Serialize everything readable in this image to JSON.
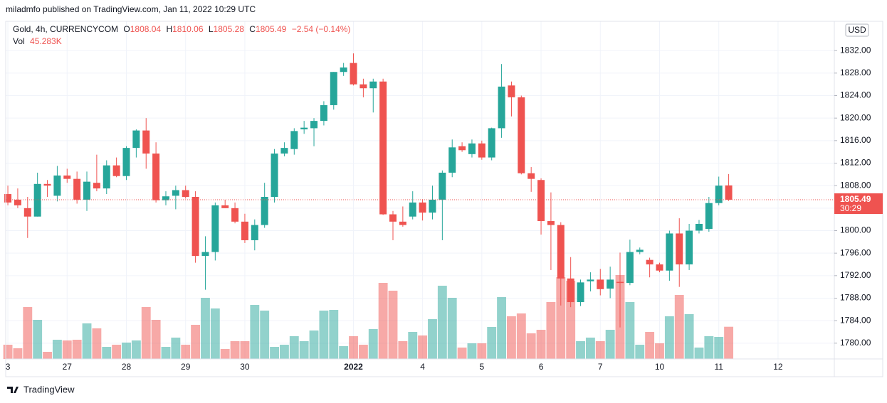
{
  "chart_data": {
    "type": "candlestick",
    "header": "miladmfo published on TradingView.com, Jan 11, 2022 10:29 UTC",
    "footer": "TradingView",
    "currency": "USD",
    "legend": {
      "symbol": "Gold, 4h, CURRENCYCOM",
      "open": "O",
      "high": "H",
      "low": "L",
      "close": "C",
      "change": "−2.54 (−0.14%)",
      "volume": "Vol"
    },
    "volume_last_label": "45.283K",
    "countdown": "30:29",
    "up_color": "#26a69a",
    "down_color": "#ef5350",
    "candles": {
      "open": [
        1806.5,
        1805.5,
        1804,
        1802.5,
        1808.3,
        1806.2,
        1809.8,
        1809.2,
        1805.5,
        1808.5,
        1807.5,
        1811.6,
        1809.7,
        1814.7,
        1817.8,
        1813.7,
        1805.4,
        1806.2,
        1807.2,
        1806,
        1795.5,
        1796.2,
        1804.5,
        1804,
        1801.6,
        1798.3,
        1801,
        1806,
        1813.7,
        1814.5,
        1818,
        1818.2,
        1819.5,
        1822.3,
        1828.2,
        1829.8,
        1826,
        1825.3,
        1826.5,
        1802.9,
        1801.6,
        1802.5,
        1805,
        1803.2,
        1805.5,
        1810.3,
        1815,
        1813.6,
        1815.5,
        1813,
        1818.2,
        1825.8,
        1823.7,
        1810.2,
        1809,
        1801.7,
        1801,
        1791.5,
        1787.3,
        1791,
        1791.3,
        1789.7,
        1790.9,
        1790.7,
        1796.2,
        1794.8,
        1794,
        1792.9,
        1799.5,
        1794,
        1800,
        1800.3,
        1804.9,
        1808.04
      ],
      "high": [
        1808,
        1807.5,
        1806,
        1810.3,
        1809,
        1811.5,
        1811,
        1810.5,
        1810.5,
        1813.5,
        1812.5,
        1813,
        1815,
        1818,
        1820,
        1815.7,
        1807,
        1808,
        1808,
        1807,
        1799,
        1805,
        1805.5,
        1805,
        1803,
        1802,
        1808.5,
        1814.5,
        1815.7,
        1818.2,
        1819.5,
        1820,
        1823,
        1828.2,
        1829.8,
        1831.5,
        1827,
        1827,
        1827,
        1803.5,
        1804.3,
        1807,
        1805.6,
        1808,
        1810.7,
        1816.2,
        1815.7,
        1816.2,
        1816,
        1818.3,
        1829.6,
        1826.5,
        1824,
        1811.3,
        1809.3,
        1806.8,
        1801.5,
        1795.3,
        1791.3,
        1792.6,
        1793.2,
        1793.6,
        1796.1,
        1798.4,
        1797,
        1795.2,
        1794.3,
        1800,
        1802.2,
        1801.2,
        1801.9,
        1806,
        1809.6,
        1810.06
      ],
      "low": [
        1804.5,
        1804,
        1798.7,
        1802.5,
        1806,
        1805.2,
        1808.5,
        1804.8,
        1803.5,
        1807,
        1806.5,
        1809.5,
        1809,
        1813,
        1811,
        1805,
        1804.5,
        1803.8,
        1805.7,
        1794.3,
        1789.5,
        1794.7,
        1804,
        1801.3,
        1797.8,
        1796.5,
        1800.5,
        1805,
        1813.2,
        1813.5,
        1817.2,
        1815,
        1818.7,
        1821.5,
        1827.5,
        1825.8,
        1823.7,
        1821,
        1802.8,
        1798.3,
        1800.7,
        1802,
        1801.8,
        1802,
        1798.3,
        1809.5,
        1814,
        1813,
        1812.6,
        1812.5,
        1816.5,
        1820.3,
        1810,
        1806.9,
        1799.3,
        1793,
        1786.7,
        1786.4,
        1786.6,
        1789.2,
        1788.5,
        1788,
        1782.8,
        1790.3,
        1795.8,
        1791.7,
        1792.6,
        1791.1,
        1790,
        1793,
        1799.5,
        1799.8,
        1804.5,
        1805.28
      ],
      "close": [
        1805,
        1804.5,
        1802.5,
        1808.3,
        1808,
        1809.8,
        1809.2,
        1805.5,
        1808.7,
        1807.5,
        1811.6,
        1809.7,
        1814.7,
        1817.8,
        1813.7,
        1805.4,
        1806.1,
        1807.2,
        1806,
        1795.5,
        1796.2,
        1804.5,
        1804,
        1801.6,
        1798.3,
        1801,
        1806,
        1813.7,
        1814.7,
        1817.7,
        1818.3,
        1819.5,
        1822.3,
        1828.2,
        1829,
        1826,
        1825.3,
        1826.5,
        1802.9,
        1801.6,
        1801,
        1805,
        1803.2,
        1805.5,
        1810.3,
        1814.8,
        1814.3,
        1815.5,
        1813,
        1818.2,
        1825.6,
        1823.7,
        1810.2,
        1809.2,
        1801.7,
        1801,
        1791.5,
        1787.3,
        1790.8,
        1791.3,
        1789.6,
        1791.3,
        1790.7,
        1796.2,
        1796.6,
        1794,
        1792.9,
        1799.5,
        1794,
        1800,
        1801.2,
        1804.9,
        1808,
        1805.49
      ],
      "volume": [
        20000,
        15000,
        73000,
        55000,
        10000,
        27000,
        26000,
        27000,
        50000,
        43000,
        17000,
        20000,
        23000,
        26000,
        73000,
        55000,
        17000,
        30000,
        20000,
        48000,
        86000,
        71000,
        14000,
        25000,
        25000,
        76000,
        68000,
        17000,
        20000,
        32000,
        25000,
        40000,
        68000,
        69000,
        18000,
        32000,
        20000,
        42000,
        107000,
        96000,
        25000,
        38000,
        33000,
        56000,
        103000,
        86000,
        16000,
        22000,
        22000,
        45000,
        87000,
        60000,
        64000,
        36000,
        41000,
        80000,
        115000,
        110000,
        25000,
        30000,
        25000,
        41000,
        118000,
        80000,
        20000,
        38000,
        22000,
        60000,
        90000,
        63000,
        16000,
        32000,
        31000,
        45283
      ]
    },
    "xlim": [
      -0.22,
      83.7
    ],
    "xticks": [
      {
        "value": 0,
        "label": "3"
      },
      {
        "value": 6,
        "label": "27"
      },
      {
        "value": 12,
        "label": "28"
      },
      {
        "value": 18,
        "label": "29"
      },
      {
        "value": 24,
        "label": "30"
      },
      {
        "value": 35,
        "label": "2022"
      },
      {
        "value": 42,
        "label": "4"
      },
      {
        "value": 48,
        "label": "5"
      },
      {
        "value": 54,
        "label": "6"
      },
      {
        "value": 60,
        "label": "7"
      },
      {
        "value": 66,
        "label": "10"
      },
      {
        "value": 72,
        "label": "11"
      },
      {
        "value": 78,
        "label": "12"
      }
    ],
    "ylim": [
      1777.2,
      1837.2
    ],
    "yticks": [
      {
        "value": 1780,
        "label": "1780.00"
      },
      {
        "value": 1784,
        "label": "1784.00"
      },
      {
        "value": 1788,
        "label": "1788.00"
      },
      {
        "value": 1792,
        "label": "1792.00"
      },
      {
        "value": 1796,
        "label": "1796.00"
      },
      {
        "value": 1800,
        "label": "1800.00"
      },
      {
        "value": 1804,
        "label": "1804.00"
      },
      {
        "value": 1808,
        "label": "1808.00"
      },
      {
        "value": 1812,
        "label": "1812.00"
      },
      {
        "value": 1816,
        "label": "1816.00"
      },
      {
        "value": 1820,
        "label": "1820.00"
      },
      {
        "value": 1824,
        "label": "1824.00"
      },
      {
        "value": 1828,
        "label": "1828.00"
      },
      {
        "value": 1832,
        "label": "1832.00"
      }
    ],
    "grid": true
  }
}
